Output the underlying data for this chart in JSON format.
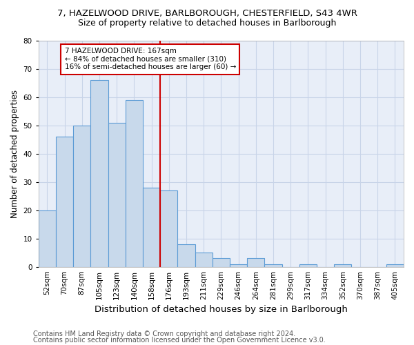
{
  "title_line1": "7, HAZELWOOD DRIVE, BARLBOROUGH, CHESTERFIELD, S43 4WR",
  "title_line2": "Size of property relative to detached houses in Barlborough",
  "xlabel": "Distribution of detached houses by size in Barlborough",
  "ylabel": "Number of detached properties",
  "categories": [
    "52sqm",
    "70sqm",
    "87sqm",
    "105sqm",
    "123sqm",
    "140sqm",
    "158sqm",
    "176sqm",
    "193sqm",
    "211sqm",
    "229sqm",
    "246sqm",
    "264sqm",
    "281sqm",
    "299sqm",
    "317sqm",
    "334sqm",
    "352sqm",
    "370sqm",
    "387sqm",
    "405sqm"
  ],
  "values": [
    20,
    46,
    50,
    66,
    51,
    59,
    28,
    27,
    8,
    5,
    3,
    1,
    3,
    1,
    0,
    1,
    0,
    1,
    0,
    0,
    1
  ],
  "bar_color": "#c8d9eb",
  "bar_edge_color": "#5b9bd5",
  "annotation_line1": "7 HAZELWOOD DRIVE: 167sqm",
  "annotation_line2": "← 84% of detached houses are smaller (310)",
  "annotation_line3": "16% of semi-detached houses are larger (60) →",
  "vline_index": 7,
  "vline_color": "#cc0000",
  "annotation_box_color": "#cc0000",
  "ylim": [
    0,
    80
  ],
  "yticks": [
    0,
    10,
    20,
    30,
    40,
    50,
    60,
    70,
    80
  ],
  "footer_line1": "Contains HM Land Registry data © Crown copyright and database right 2024.",
  "footer_line2": "Contains public sector information licensed under the Open Government Licence v3.0.",
  "bg_color": "#ffffff",
  "plot_bg_color": "#e8eef8",
  "grid_color": "#c8d4e8",
  "title_fontsize": 9.5,
  "subtitle_fontsize": 9,
  "ylabel_fontsize": 8.5,
  "xlabel_fontsize": 9.5,
  "tick_fontsize": 7.5,
  "annotation_fontsize": 7.5,
  "footer_fontsize": 7
}
